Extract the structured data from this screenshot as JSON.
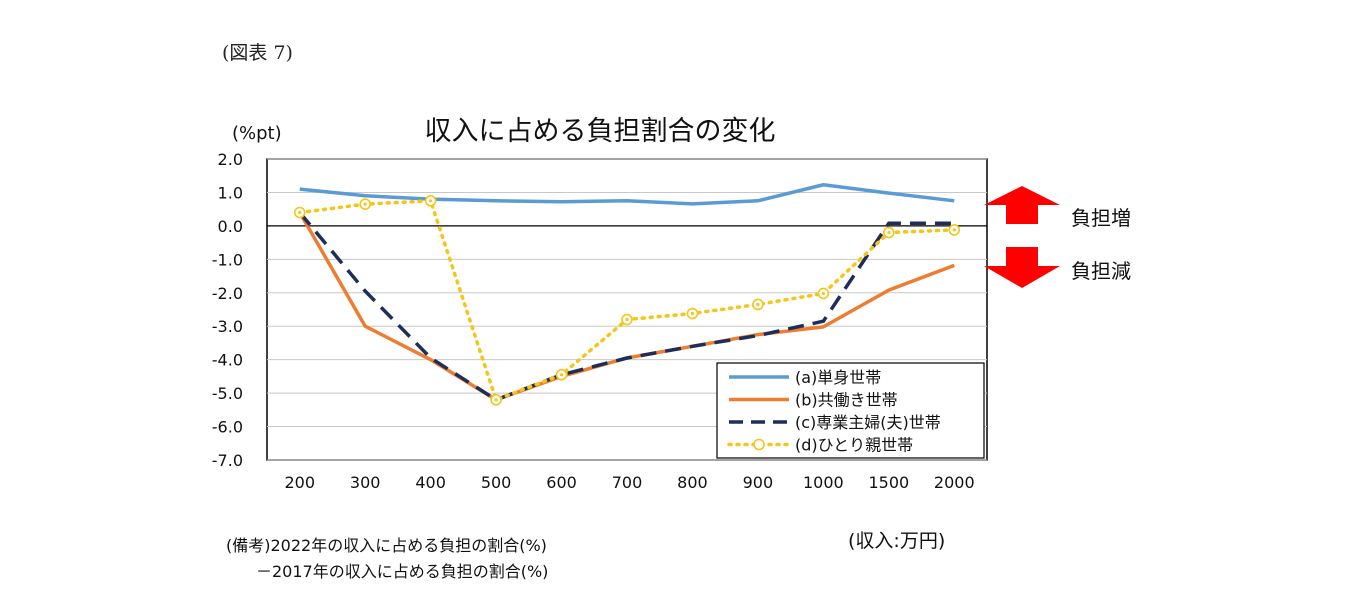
{
  "figure_label": "(図表 7)",
  "note": {
    "line1": "(備考)2022年の収入に占める負担の割合(%)",
    "line2": "－2017年の収入に占める負担の割合(%)"
  },
  "indicators": {
    "increase_label": "負担増",
    "decrease_label": "負担減",
    "increase_color": "#ff0000",
    "decrease_color": "#ff0000"
  },
  "chart_data": {
    "type": "line",
    "title": "収入に占める負担割合の変化",
    "ylabel": "(%pt)",
    "xlabel": "(収入:万円)",
    "categories": [
      "200",
      "300",
      "400",
      "500",
      "600",
      "700",
      "800",
      "900",
      "1000",
      "1500",
      "2000"
    ],
    "ylim": [
      -7.0,
      2.0
    ],
    "yticks": [
      "2.0",
      "1.0",
      "0.0",
      "-1.0",
      "-2.0",
      "-3.0",
      "-4.0",
      "-5.0",
      "-6.0",
      "-7.0"
    ],
    "grid": true,
    "legend_position": "bottom-right",
    "series": [
      {
        "name": "(a)単身世帯",
        "color": "#5b9bd5",
        "style": "solid",
        "values": [
          1.1,
          0.9,
          0.8,
          0.75,
          0.72,
          0.75,
          0.66,
          0.75,
          1.23,
          0.98,
          0.75
        ]
      },
      {
        "name": "(b)共働き世帯",
        "color": "#ed7d31",
        "style": "solid",
        "values": [
          0.4,
          -3.0,
          -4.0,
          -5.2,
          -4.5,
          -3.95,
          -3.6,
          -3.25,
          -3.02,
          -1.92,
          -1.18
        ]
      },
      {
        "name": "(c)専業主婦(夫)世帯",
        "color": "#1f2d5a",
        "style": "dashed",
        "values": [
          0.4,
          -1.95,
          -3.95,
          -5.2,
          -4.45,
          -3.95,
          -3.6,
          -3.28,
          -2.85,
          0.08,
          0.08
        ]
      },
      {
        "name": "(d)ひとり親世帯",
        "color": "#f5c518",
        "style": "dotted-marker",
        "values": [
          0.4,
          0.65,
          0.75,
          -5.2,
          -4.45,
          -2.8,
          -2.62,
          -2.35,
          -2.02,
          -0.2,
          -0.12
        ]
      }
    ]
  }
}
